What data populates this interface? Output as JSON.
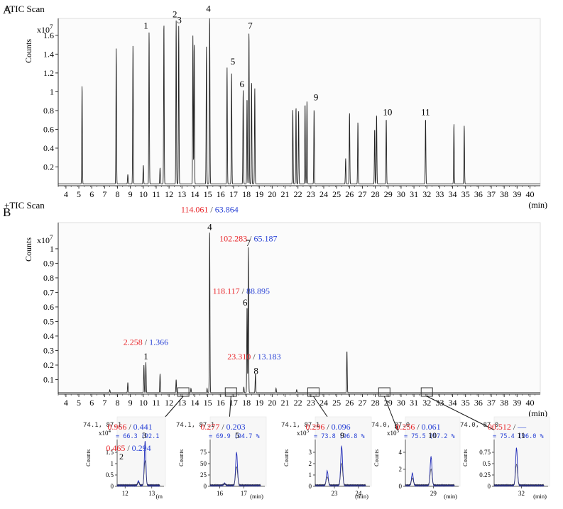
{
  "panel_labels": [
    "A",
    "B"
  ],
  "chart_data": [
    {
      "type": "line",
      "panel": "A",
      "header": "+TIC  Scan",
      "ylabel": "Counts",
      "y_multiplier": "x10",
      "y_exponent": "7",
      "xlabel": "(min)",
      "xlim": [
        3.4,
        40.8
      ],
      "ylim": [
        0,
        1.78
      ],
      "x_ticks": [
        4,
        5,
        6,
        7,
        8,
        9,
        10,
        11,
        12,
        13,
        14,
        15,
        16,
        17,
        18,
        19,
        20,
        21,
        22,
        23,
        24,
        25,
        26,
        27,
        28,
        29,
        30,
        31,
        32,
        33,
        34,
        35,
        36,
        37,
        38,
        39,
        40
      ],
      "y_ticks": [
        0.2,
        0.4,
        0.6,
        0.8,
        1,
        1.2,
        1.4,
        1.6
      ],
      "y_tick_labels": [
        "0.2",
        "0.4",
        "0.6",
        "0.8",
        "1",
        "1.2",
        "1.4",
        "1.6"
      ],
      "baseline": 0.02,
      "peaks": [
        {
          "rt": 5.25,
          "h": 1.05
        },
        {
          "rt": 7.9,
          "h": 1.44
        },
        {
          "rt": 8.8,
          "h": 0.1
        },
        {
          "rt": 9.2,
          "h": 1.48
        },
        {
          "rt": 10.0,
          "h": 0.2
        },
        {
          "rt": 10.45,
          "h": 1.62
        },
        {
          "rt": 11.3,
          "h": 0.17
        },
        {
          "rt": 11.6,
          "h": 1.72
        },
        {
          "rt": 12.55,
          "h": 1.74
        },
        {
          "rt": 12.75,
          "h": 1.68
        },
        {
          "rt": 13.85,
          "h": 1.58
        },
        {
          "rt": 13.95,
          "h": 1.5
        },
        {
          "rt": 14.9,
          "h": 1.46
        },
        {
          "rt": 15.15,
          "h": 1.8
        },
        {
          "rt": 16.5,
          "h": 1.24
        },
        {
          "rt": 16.85,
          "h": 1.18
        },
        {
          "rt": 17.75,
          "h": 1.0
        },
        {
          "rt": 18.05,
          "h": 0.92
        },
        {
          "rt": 18.2,
          "h": 1.62
        },
        {
          "rt": 18.4,
          "h": 1.1
        },
        {
          "rt": 18.65,
          "h": 1.02
        },
        {
          "rt": 21.6,
          "h": 0.79
        },
        {
          "rt": 21.85,
          "h": 0.82
        },
        {
          "rt": 22.05,
          "h": 0.78
        },
        {
          "rt": 22.55,
          "h": 0.86
        },
        {
          "rt": 22.7,
          "h": 0.89
        },
        {
          "rt": 23.25,
          "h": 0.8
        },
        {
          "rt": 25.7,
          "h": 0.27
        },
        {
          "rt": 26.0,
          "h": 0.76
        },
        {
          "rt": 26.65,
          "h": 0.66
        },
        {
          "rt": 27.95,
          "h": 0.59
        },
        {
          "rt": 28.1,
          "h": 0.74
        },
        {
          "rt": 28.85,
          "h": 0.7
        },
        {
          "rt": 31.9,
          "h": 0.7
        },
        {
          "rt": 34.1,
          "h": 0.64
        },
        {
          "rt": 34.9,
          "h": 0.62
        }
      ],
      "peak_labels": [
        {
          "text": "1",
          "rt": 10.2,
          "y": 1.67
        },
        {
          "text": "2",
          "rt": 12.45,
          "y": 1.79
        },
        {
          "text": "3",
          "rt": 12.8,
          "y": 1.73
        },
        {
          "text": "4",
          "rt": 15.05,
          "y": 1.85
        },
        {
          "text": "5",
          "rt": 16.95,
          "y": 1.29
        },
        {
          "text": "6",
          "rt": 17.65,
          "y": 1.05
        },
        {
          "text": "7",
          "rt": 18.3,
          "y": 1.67
        },
        {
          "text": "9",
          "rt": 23.4,
          "y": 0.91
        },
        {
          "text": "10",
          "rt": 28.95,
          "y": 0.75
        },
        {
          "text": "11",
          "rt": 31.9,
          "y": 0.75
        }
      ]
    },
    {
      "type": "line",
      "panel": "B",
      "header": "+TIC  Scan",
      "ylabel": "Counts",
      "y_multiplier": "x10",
      "y_exponent": "7",
      "xlabel": "(min)",
      "xlim": [
        3.4,
        40.8
      ],
      "ylim": [
        0,
        1.18
      ],
      "x_ticks": [
        4,
        5,
        6,
        7,
        8,
        9,
        10,
        11,
        12,
        13,
        14,
        15,
        16,
        17,
        18,
        19,
        20,
        21,
        22,
        23,
        24,
        25,
        26,
        27,
        28,
        29,
        30,
        31,
        32,
        33,
        34,
        35,
        36,
        37,
        38,
        39,
        40
      ],
      "y_ticks": [
        0.1,
        0.2,
        0.3,
        0.4,
        0.5,
        0.6,
        0.7,
        0.8,
        0.9,
        1
      ],
      "y_tick_labels": [
        "0.1",
        "0.2",
        "0.3",
        "0.4",
        "0.5",
        "0.6",
        "0.7",
        "0.8",
        "0.9",
        "1"
      ],
      "baseline": 0.01,
      "peaks": [
        {
          "rt": 7.4,
          "h": 0.02
        },
        {
          "rt": 8.8,
          "h": 0.07
        },
        {
          "rt": 10.05,
          "h": 0.19
        },
        {
          "rt": 10.2,
          "h": 0.21
        },
        {
          "rt": 11.3,
          "h": 0.13
        },
        {
          "rt": 12.55,
          "h": 0.09
        },
        {
          "rt": 13.7,
          "h": 0.03
        },
        {
          "rt": 14.95,
          "h": 0.03
        },
        {
          "rt": 15.15,
          "h": 1.12
        },
        {
          "rt": 17.8,
          "h": 0.04
        },
        {
          "rt": 18.05,
          "h": 0.6
        },
        {
          "rt": 18.15,
          "h": 1.0
        },
        {
          "rt": 18.7,
          "h": 0.13
        },
        {
          "rt": 20.3,
          "h": 0.03
        },
        {
          "rt": 21.9,
          "h": 0.02
        },
        {
          "rt": 25.8,
          "h": 0.29
        }
      ],
      "peak_labels": [
        {
          "text": "1",
          "rt": 10.2,
          "y": 0.24
        },
        {
          "text": "4",
          "rt": 15.15,
          "y": 1.13
        },
        {
          "text": "7",
          "rt": 18.15,
          "y": 1.02
        },
        {
          "text": "6",
          "rt": 17.9,
          "y": 0.61
        },
        {
          "text": "8",
          "rt": 18.75,
          "y": 0.14
        }
      ],
      "annotations": [
        {
          "red": "114.061",
          "blue": "63.864",
          "rt": 15.15,
          "y": 1.25
        },
        {
          "red": "102.283",
          "blue": "65.187",
          "rt": 18.15,
          "y": 1.05
        },
        {
          "red": "118.117",
          "blue": "88.895",
          "rt": 17.6,
          "y": 0.69
        },
        {
          "red": "2.258",
          "blue": "1.366",
          "rt": 10.2,
          "y": 0.34
        },
        {
          "red": "23.310",
          "blue": "13.183",
          "rt": 18.6,
          "y": 0.24
        }
      ],
      "zoom_boxes": [
        13.1,
        16.8,
        23.2,
        28.7,
        32.0
      ]
    }
  ],
  "insets": [
    {
      "id": "zoom-2-3",
      "header": "74.1, 87.1",
      "match": "= 66.3 (92.1",
      "exp": "x10",
      "exp_power": "4",
      "y_ticks": [
        "0",
        "0.5",
        "1",
        "1.5"
      ],
      "x_ticks": [
        "12",
        "13"
      ],
      "xunit": "(m",
      "xlim": [
        11.7,
        13.3
      ],
      "ylim": [
        0,
        3.2
      ],
      "peaks": [
        {
          "rt": 12.5,
          "h": 0.3
        },
        {
          "rt": 12.75,
          "h": 3.0
        }
      ],
      "ratios": [
        {
          "red": "0.966",
          "blue": "0.441",
          "num": "3"
        },
        {
          "red": "0.465",
          "blue": "0.294",
          "num": "2"
        }
      ]
    },
    {
      "id": "zoom-5",
      "header": "74.1, 87.1",
      "match": "= 69.9 (94.7 %",
      "exp": "",
      "exp_power": "",
      "y_ticks": [
        "0",
        "25",
        "50",
        "75"
      ],
      "x_ticks": [
        "16",
        "17"
      ],
      "xunit": "(min)",
      "xlim": [
        15.6,
        17.7
      ],
      "ylim": [
        0,
        100
      ],
      "peaks": [
        {
          "rt": 16.7,
          "h": 70
        },
        {
          "rt": 16.2,
          "h": 4
        }
      ],
      "ratios": [
        {
          "red": "0.277",
          "blue": "0.203",
          "num": "5"
        }
      ]
    },
    {
      "id": "zoom-9",
      "header": "74.1, 87.1",
      "match": "= 73.8 (96.8 %",
      "exp": "x10",
      "exp_power": "3",
      "y_ticks": [
        "0",
        "1",
        "2",
        "3"
      ],
      "x_ticks": [
        "23",
        "24"
      ],
      "xunit": "(min)",
      "xlim": [
        22.2,
        24.3
      ],
      "ylim": [
        0,
        3.6
      ],
      "peaks": [
        {
          "rt": 22.7,
          "h": 1.1
        },
        {
          "rt": 23.3,
          "h": 3.0
        }
      ],
      "ratios": [
        {
          "red": "0.296",
          "blue": "0.096",
          "num": "9"
        }
      ]
    },
    {
      "id": "zoom-10",
      "header": "74.0, 87.0",
      "match": "= 75.5 (97.2 %",
      "exp": "x10",
      "exp_power": "3",
      "y_ticks": [
        "0",
        "2",
        "4"
      ],
      "x_ticks": [
        "29"
      ],
      "xunit": "(min)",
      "xlim": [
        27.8,
        29.9
      ],
      "ylim": [
        0,
        6.2
      ],
      "peaks": [
        {
          "rt": 28.1,
          "h": 1.6
        },
        {
          "rt": 28.9,
          "h": 3.8
        }
      ],
      "ratios": [
        {
          "red": "0.256",
          "blue": "0.061",
          "num": "10"
        }
      ]
    },
    {
      "id": "zoom-11",
      "header": "74.0, 87.0",
      "match": "= 75.4 (96.0 %",
      "exp": "",
      "exp_power": "",
      "y_ticks": [
        "0",
        "0.25",
        "0.5",
        "0.75"
      ],
      "x_ticks": [
        "32"
      ],
      "xunit": "(min)",
      "xlim": [
        30.9,
        32.9
      ],
      "ylim": [
        0,
        1.15
      ],
      "peaks": [
        {
          "rt": 31.8,
          "h": 0.92
        }
      ],
      "ratios": [
        {
          "red": "00.512",
          "blue": "—",
          "num": "11"
        }
      ]
    }
  ],
  "colors": {
    "red": "#e8262a",
    "blue": "#2b44d6",
    "trace": "#222222",
    "inset_trace": "#1f2ab8",
    "axis": "#333333"
  }
}
